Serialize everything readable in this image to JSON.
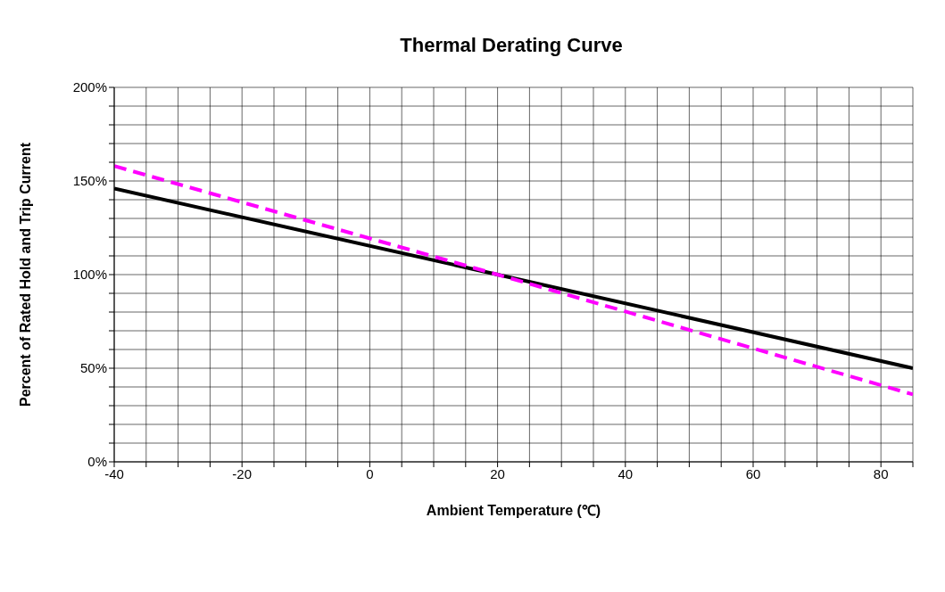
{
  "chart_data": {
    "type": "line",
    "title": "Thermal Derating Curve",
    "xlabel": "Ambient Temperature (℃)",
    "ylabel": "Percent of Rated Hold  and Trip Current",
    "x": [
      -40,
      20,
      85
    ],
    "series": [
      {
        "color": "#000000",
        "values": [
          146,
          100,
          50
        ],
        "line_style": "solid"
      },
      {
        "color": "#ff00ff",
        "values": [
          158,
          100,
          36
        ],
        "line_style": "dashed"
      }
    ],
    "xlim": [
      -40,
      85
    ],
    "xticks": [
      -40,
      {
        "value": -35,
        "label": null
      },
      {
        "value": -30,
        "label": null
      },
      {
        "value": -25,
        "label": null
      },
      -20,
      {
        "value": -15,
        "label": null
      },
      {
        "value": -10,
        "label": null
      },
      {
        "value": -5,
        "label": null
      },
      0,
      {
        "value": 5,
        "label": null
      },
      {
        "value": 10,
        "label": null
      },
      {
        "value": 15,
        "label": null
      },
      20,
      {
        "value": 25,
        "label": null
      },
      {
        "value": 30,
        "label": null
      },
      {
        "value": 35,
        "label": null
      },
      40,
      {
        "value": 45,
        "label": null
      },
      {
        "value": 50,
        "label": null
      },
      {
        "value": 55,
        "label": null
      },
      60,
      {
        "value": 65,
        "label": null
      },
      {
        "value": 70,
        "label": null
      },
      {
        "value": 75,
        "label": null
      },
      80,
      {
        "value": 85,
        "label": null
      }
    ],
    "ylim": [
      0,
      200
    ],
    "yticks": [
      {
        "value": 0,
        "label": "0%"
      },
      {
        "value": 10,
        "label": null
      },
      {
        "value": 20,
        "label": null
      },
      {
        "value": 30,
        "label": null
      },
      {
        "value": 40,
        "label": null
      },
      {
        "value": 50,
        "label": "50%"
      },
      {
        "value": 60,
        "label": null
      },
      {
        "value": 70,
        "label": null
      },
      {
        "value": 80,
        "label": null
      },
      {
        "value": 90,
        "label": null
      },
      {
        "value": 100,
        "label": "100%"
      },
      {
        "value": 110,
        "label": null
      },
      {
        "value": 120,
        "label": null
      },
      {
        "value": 130,
        "label": null
      },
      {
        "value": 140,
        "label": null
      },
      {
        "value": 150,
        "label": "150%"
      },
      {
        "value": 160,
        "label": null
      },
      {
        "value": 170,
        "label": null
      },
      {
        "value": 180,
        "label": null
      },
      {
        "value": 190,
        "label": null
      },
      {
        "value": 200,
        "label": "200%"
      }
    ],
    "grid": true,
    "marker": "none"
  }
}
